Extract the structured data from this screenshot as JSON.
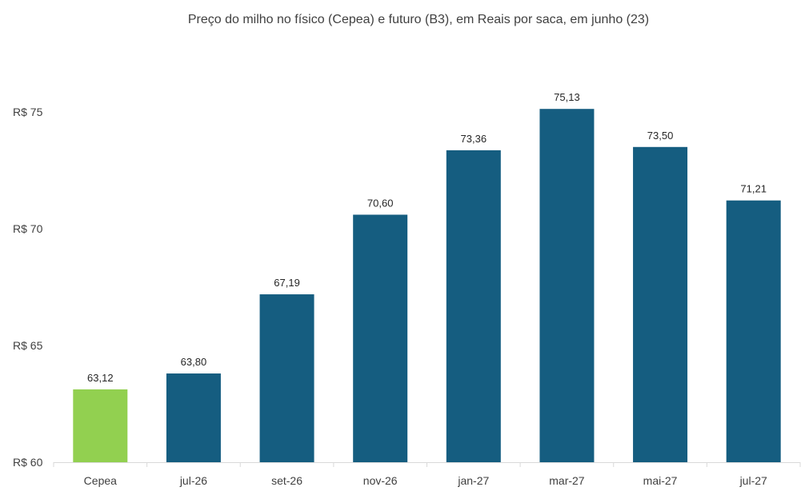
{
  "chart_data": {
    "type": "bar",
    "title": "Preço do milho no físico (Cepea) e futuro (B3), em Reais por saca, em junho (23)",
    "categories": [
      "Cepea",
      "jul-26",
      "set-26",
      "nov-26",
      "jan-27",
      "mar-27",
      "mai-27",
      "jul-27"
    ],
    "values": [
      63.12,
      63.8,
      67.19,
      70.6,
      73.36,
      75.13,
      73.5,
      71.21
    ],
    "value_labels": [
      "63,12",
      "63,80",
      "67,19",
      "70,60",
      "73,36",
      "75,13",
      "73,50",
      "71,21"
    ],
    "ylim": [
      60,
      75
    ],
    "yticks": [
      60,
      65,
      70,
      75
    ],
    "ytick_labels": [
      "R$ 60",
      "R$ 65",
      "R$ 70",
      "R$ 75"
    ],
    "xlabel": "",
    "ylabel": "",
    "grid": false,
    "legend": "none",
    "colors": {
      "Cepea": "#92d050",
      "default": "#155d80"
    }
  }
}
